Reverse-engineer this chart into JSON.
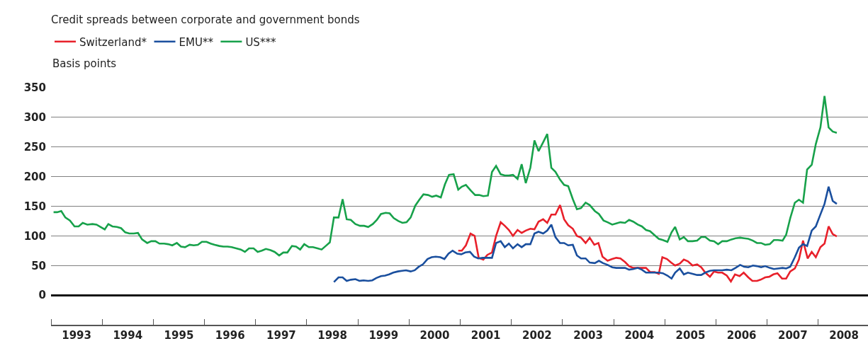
{
  "chart_data": {
    "type": "line",
    "title": "Credit spreads between corporate and government bonds",
    "ylabel": "Basis points",
    "xlim": [
      1993,
      2008.97
    ],
    "ylim": [
      -50,
      350
    ],
    "xticks": [
      {
        "value": 1993,
        "label": null
      },
      {
        "value": 1994,
        "label": null
      },
      {
        "value": 1995,
        "label": null
      },
      {
        "value": 1996,
        "label": null
      },
      {
        "value": 1997,
        "label": null
      },
      {
        "value": 1998,
        "label": null
      },
      {
        "value": 1999,
        "label": null
      },
      {
        "value": 2000,
        "label": null
      },
      {
        "value": 2001,
        "label": null
      },
      {
        "value": 2002,
        "label": null
      },
      {
        "value": 2003,
        "label": null
      },
      {
        "value": 2004,
        "label": null
      },
      {
        "value": 2005,
        "label": null
      },
      {
        "value": 2006,
        "label": null
      },
      {
        "value": 2007,
        "label": null
      },
      {
        "value": 2008,
        "label": null
      },
      {
        "value": 1993.5,
        "label": "1993"
      },
      {
        "value": 1994.5,
        "label": "1994"
      },
      {
        "value": 1995.5,
        "label": "1995"
      },
      {
        "value": 1996.5,
        "label": "1996"
      },
      {
        "value": 1997.5,
        "label": "1997"
      },
      {
        "value": 1998.5,
        "label": "1998"
      },
      {
        "value": 1999.5,
        "label": "1999"
      },
      {
        "value": 2000.5,
        "label": "2000"
      },
      {
        "value": 2001.5,
        "label": "2001"
      },
      {
        "value": 2002.5,
        "label": "2002"
      },
      {
        "value": 2003.5,
        "label": "2003"
      },
      {
        "value": 2004.5,
        "label": "2004"
      },
      {
        "value": 2005.5,
        "label": "2005"
      },
      {
        "value": 2006.5,
        "label": "2006"
      },
      {
        "value": 2007.5,
        "label": "2007"
      },
      {
        "value": 2008.5,
        "label": "2008"
      }
    ],
    "yticks": [
      0,
      50,
      100,
      150,
      200,
      250,
      300,
      350
    ],
    "grid": "y",
    "legend": "top left",
    "marker": "none",
    "line_style": "solid",
    "series": [
      {
        "name": "Switzerland*",
        "color": "#e8202a",
        "x": [
          2000.96,
          2001.03,
          2001.11,
          2001.2,
          2001.28,
          2001.36,
          2001.45,
          2001.53,
          2001.62,
          2001.7,
          2001.79,
          2001.87,
          2001.95,
          2002.03,
          2002.12,
          2002.2,
          2002.28,
          2002.37,
          2002.45,
          2002.53,
          2002.62,
          2002.7,
          2002.78,
          2002.86,
          2002.95,
          2003.03,
          2003.11,
          2003.2,
          2003.28,
          2003.36,
          2003.45,
          2003.53,
          2003.62,
          2003.7,
          2003.78,
          2003.88,
          2003.97,
          2004.05,
          2004.13,
          2004.22,
          2004.3,
          2004.38,
          2004.47,
          2004.55,
          2004.63,
          2004.71,
          2004.8,
          2004.88,
          2004.95,
          2005.04,
          2005.12,
          2005.2,
          2005.29,
          2005.37,
          2005.45,
          2005.54,
          2005.63,
          2005.71,
          2005.79,
          2005.88,
          2005.96,
          2006.04,
          2006.12,
          2006.21,
          2006.29,
          2006.37,
          2006.46,
          2006.54,
          2006.63,
          2006.71,
          2006.8,
          2006.87,
          2006.96,
          2007.04,
          2007.12,
          2007.2,
          2007.29,
          2007.37,
          2007.45,
          2007.54,
          2007.62,
          2007.7,
          2007.79,
          2007.87,
          2007.95,
          2008.04,
          2008.12,
          2008.2,
          2008.28,
          2008.36
        ],
        "values": [
          75,
          75,
          84,
          104,
          100,
          63,
          60,
          68,
          72,
          100,
          123,
          117,
          110,
          100,
          110,
          105,
          109,
          112,
          111,
          124,
          128,
          122,
          136,
          136,
          152,
          128,
          118,
          112,
          100,
          97,
          88,
          97,
          85,
          88,
          65,
          58,
          61,
          63,
          62,
          56,
          49,
          46,
          46,
          46,
          46,
          39,
          39,
          36,
          64,
          61,
          55,
          50,
          53,
          60,
          57,
          50,
          52,
          47,
          38,
          31,
          40,
          38,
          38,
          33,
          23,
          35,
          32,
          38,
          30,
          24,
          24,
          26,
          30,
          31,
          35,
          37,
          28,
          28,
          40,
          45,
          60,
          92,
          62,
          73,
          64,
          81,
          87,
          116,
          103,
          99
        ]
      },
      {
        "name": "EMU**",
        "color": "#1a4f9e",
        "x": [
          1998.53,
          1998.62,
          1998.7,
          1998.78,
          1998.86,
          1998.95,
          1999.03,
          1999.11,
          1999.2,
          1999.28,
          1999.36,
          1999.45,
          1999.53,
          1999.61,
          1999.69,
          1999.78,
          1999.86,
          1999.94,
          2000.03,
          2000.11,
          2000.19,
          2000.27,
          2000.36,
          2000.44,
          2000.52,
          2000.61,
          2000.69,
          2000.77,
          2000.85,
          2000.94,
          2001.02,
          2001.1,
          2001.19,
          2001.27,
          2001.35,
          2001.44,
          2001.52,
          2001.62,
          2001.7,
          2001.79,
          2001.87,
          2001.95,
          2002.03,
          2002.12,
          2002.2,
          2002.28,
          2002.37,
          2002.45,
          2002.53,
          2002.62,
          2002.7,
          2002.78,
          2002.86,
          2002.95,
          2003.03,
          2003.11,
          2003.2,
          2003.28,
          2003.36,
          2003.45,
          2003.53,
          2003.63,
          2003.71,
          2003.79,
          2003.88,
          2003.97,
          2004.05,
          2004.13,
          2004.22,
          2004.3,
          2004.38,
          2004.47,
          2004.55,
          2004.63,
          2004.71,
          2004.8,
          2004.88,
          2004.96,
          2005.05,
          2005.13,
          2005.2,
          2005.29,
          2005.37,
          2005.45,
          2005.54,
          2005.63,
          2005.71,
          2005.79,
          2005.88,
          2005.96,
          2006.04,
          2006.12,
          2006.21,
          2006.3,
          2006.38,
          2006.47,
          2006.55,
          2006.63,
          2006.72,
          2006.8,
          2006.88,
          2006.96,
          2007.05,
          2007.13,
          2007.21,
          2007.3,
          2007.37,
          2007.45,
          2007.54,
          2007.62,
          2007.7,
          2007.78,
          2007.87,
          2007.95,
          2008.03,
          2008.12,
          2008.2,
          2008.28,
          2008.36
        ],
        "values": [
          22,
          30,
          30,
          24,
          26,
          27,
          24,
          25,
          24,
          25,
          29,
          32,
          33,
          35,
          38,
          40,
          41,
          42,
          40,
          42,
          48,
          52,
          61,
          64,
          65,
          64,
          61,
          70,
          75,
          70,
          69,
          72,
          73,
          65,
          62,
          63,
          63,
          63,
          88,
          91,
          81,
          87,
          79,
          86,
          81,
          86,
          86,
          104,
          107,
          104,
          109,
          119,
          98,
          88,
          88,
          84,
          85,
          67,
          62,
          62,
          55,
          54,
          58,
          54,
          51,
          47,
          46,
          46,
          46,
          43,
          44,
          46,
          43,
          38,
          38,
          38,
          38,
          37,
          33,
          28,
          38,
          45,
          35,
          38,
          36,
          34,
          34,
          38,
          41,
          42,
          42,
          42,
          43,
          42,
          46,
          51,
          48,
          47,
          50,
          49,
          47,
          49,
          46,
          44,
          45,
          46,
          45,
          48,
          64,
          80,
          86,
          83,
          109,
          116,
          134,
          154,
          183,
          159,
          154
        ]
      },
      {
        "name": "US***",
        "color": "#17a14a",
        "x": [
          1993.05,
          1993.12,
          1993.2,
          1993.28,
          1993.37,
          1993.46,
          1993.54,
          1993.62,
          1993.71,
          1993.81,
          1993.89,
          1993.97,
          1994.05,
          1994.12,
          1994.2,
          1994.29,
          1994.37,
          1994.45,
          1994.53,
          1994.62,
          1994.7,
          1994.78,
          1994.88,
          1994.96,
          1995.04,
          1995.12,
          1995.21,
          1995.29,
          1995.37,
          1995.46,
          1995.54,
          1995.62,
          1995.71,
          1995.79,
          1995.87,
          1995.95,
          1996.04,
          1996.12,
          1996.2,
          1996.29,
          1996.37,
          1996.45,
          1996.53,
          1996.62,
          1996.71,
          1996.79,
          1996.87,
          1996.96,
          1997.04,
          1997.12,
          1997.2,
          1997.29,
          1997.37,
          1997.46,
          1997.54,
          1997.62,
          1997.71,
          1997.79,
          1997.87,
          1997.95,
          1998.04,
          1998.12,
          1998.21,
          1998.29,
          1998.37,
          1998.45,
          1998.53,
          1998.62,
          1998.7,
          1998.78,
          1998.86,
          1998.95,
          1999.04,
          1999.12,
          1999.2,
          1999.29,
          1999.37,
          1999.45,
          1999.54,
          1999.62,
          1999.7,
          1999.79,
          1999.87,
          1999.95,
          2000.03,
          2000.12,
          2000.2,
          2000.28,
          2000.37,
          2000.45,
          2000.53,
          2000.62,
          2000.7,
          2000.78,
          2000.87,
          2000.96,
          2001.03,
          2001.11,
          2001.2,
          2001.29,
          2001.37,
          2001.45,
          2001.54,
          2001.62,
          2001.7,
          2001.79,
          2001.87,
          2001.95,
          2002.03,
          2002.12,
          2002.2,
          2002.28,
          2002.37,
          2002.45,
          2002.53,
          2002.62,
          2002.7,
          2002.78,
          2002.86,
          2002.95,
          2003.03,
          2003.11,
          2003.2,
          2003.28,
          2003.36,
          2003.45,
          2003.53,
          2003.63,
          2003.71,
          2003.8,
          2003.88,
          2003.97,
          2004.05,
          2004.13,
          2004.22,
          2004.3,
          2004.38,
          2004.47,
          2004.55,
          2004.63,
          2004.71,
          2004.8,
          2004.88,
          2004.96,
          2005.05,
          2005.13,
          2005.2,
          2005.29,
          2005.37,
          2005.45,
          2005.54,
          2005.63,
          2005.71,
          2005.79,
          2005.88,
          2005.96,
          2006.04,
          2006.12,
          2006.21,
          2006.3,
          2006.38,
          2006.47,
          2006.55,
          2006.63,
          2006.72,
          2006.8,
          2006.88,
          2006.96,
          2007.05,
          2007.13,
          2007.21,
          2007.3,
          2007.37,
          2007.45,
          2007.54,
          2007.62,
          2007.7,
          2007.78,
          2007.87,
          2007.95,
          2008.04,
          2008.12,
          2008.2,
          2008.28,
          2008.36
        ],
        "values": [
          140,
          140,
          142,
          131,
          126,
          116,
          116,
          122,
          119,
          120,
          119,
          115,
          111,
          120,
          116,
          115,
          113,
          106,
          104,
          104,
          105,
          94,
          88,
          91,
          91,
          87,
          87,
          86,
          84,
          88,
          82,
          81,
          85,
          84,
          85,
          90,
          90,
          87,
          85,
          83,
          82,
          82,
          81,
          79,
          77,
          73,
          79,
          79,
          73,
          75,
          78,
          76,
          73,
          67,
          72,
          72,
          83,
          82,
          77,
          86,
          81,
          81,
          79,
          77,
          83,
          89,
          131,
          131,
          162,
          128,
          127,
          120,
          117,
          117,
          115,
          120,
          127,
          137,
          139,
          138,
          130,
          125,
          122,
          123,
          131,
          151,
          161,
          170,
          169,
          166,
          168,
          165,
          187,
          203,
          204,
          178,
          183,
          186,
          177,
          169,
          169,
          167,
          168,
          208,
          218,
          204,
          202,
          202,
          203,
          196,
          221,
          189,
          215,
          261,
          243,
          258,
          272,
          215,
          208,
          195,
          186,
          184,
          162,
          145,
          147,
          156,
          152,
          142,
          137,
          126,
          123,
          119,
          121,
          123,
          122,
          127,
          124,
          119,
          116,
          110,
          108,
          101,
          95,
          93,
          90,
          106,
          115,
          94,
          98,
          91,
          91,
          92,
          98,
          98,
          92,
          91,
          86,
          91,
          91,
          94,
          96,
          97,
          96,
          95,
          92,
          88,
          88,
          85,
          86,
          93,
          93,
          92,
          102,
          130,
          156,
          161,
          156,
          212,
          220,
          255,
          283,
          336,
          283,
          276,
          274
        ]
      }
    ]
  }
}
